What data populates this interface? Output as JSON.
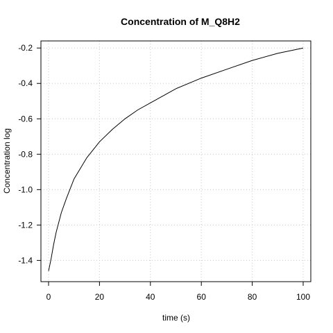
{
  "chart_data": {
    "type": "line",
    "title": "Concentration of M_Q8H2",
    "xlabel": "time (s)",
    "ylabel": "Concentration log",
    "xlim": [
      -3,
      103
    ],
    "ylim": [
      -1.52,
      -0.16
    ],
    "xticks": [
      0,
      20,
      40,
      60,
      80,
      100
    ],
    "xtick_labels": [
      "0",
      "20",
      "40",
      "60",
      "80",
      "100"
    ],
    "yticks": [
      -1.4,
      -1.2,
      -1.0,
      -0.8,
      -0.6,
      -0.4,
      -0.2
    ],
    "ytick_labels": [
      "-1.4",
      "-1.2",
      "-1.0",
      "-0.8",
      "-0.6",
      "-0.4",
      "-0.2"
    ],
    "grid": true,
    "series": [
      {
        "x": [
          0,
          1,
          2,
          3,
          5,
          7,
          10,
          15,
          20,
          25,
          30,
          35,
          40,
          50,
          60,
          70,
          80,
          90,
          100
        ],
        "y": [
          -1.46,
          -1.39,
          -1.31,
          -1.24,
          -1.13,
          -1.05,
          -0.94,
          -0.82,
          -0.73,
          -0.66,
          -0.6,
          -0.55,
          -0.51,
          -0.43,
          -0.37,
          -0.32,
          -0.27,
          -0.23,
          -0.2
        ]
      }
    ]
  }
}
